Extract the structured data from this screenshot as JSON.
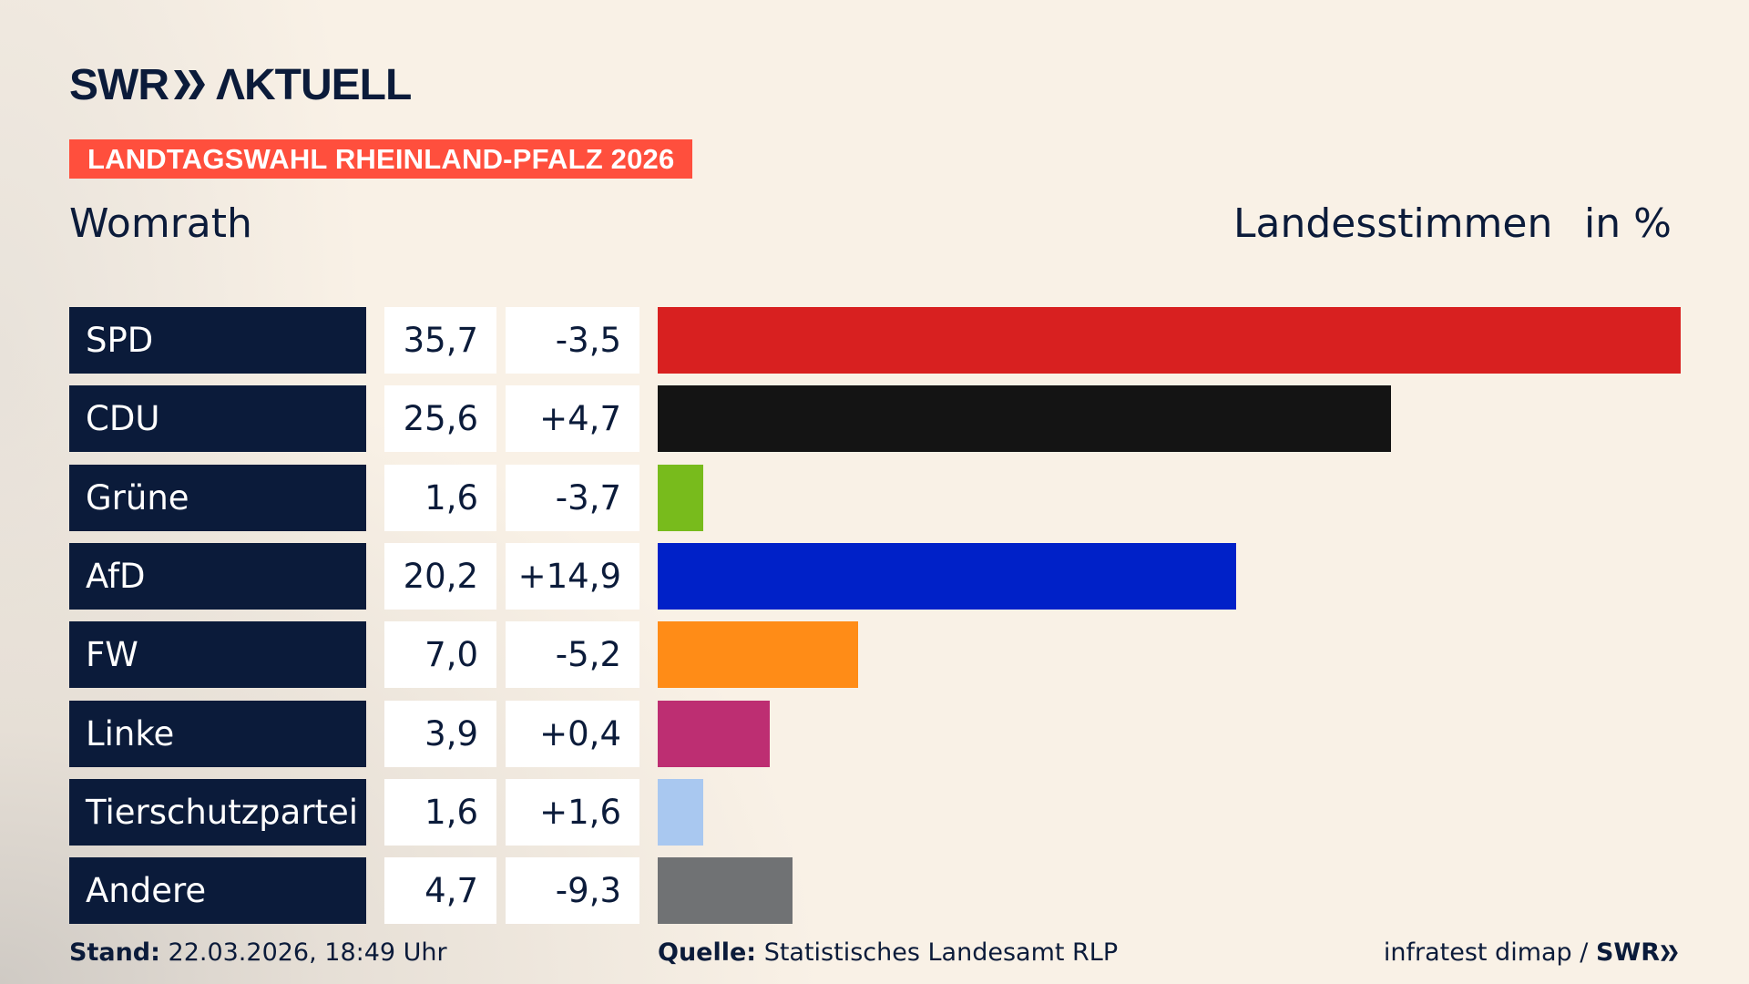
{
  "brand": {
    "logo_text": "SWR AKTUELL"
  },
  "banner": "LANDTAGSWAHL RHEINLAND-PFALZ 2026",
  "place": "Womrath",
  "header": {
    "type": "Landesstimmen",
    "unit": "in %"
  },
  "chart_data": {
    "type": "bar",
    "orientation": "horizontal",
    "categories": [
      "SPD",
      "CDU",
      "Grüne",
      "AfD",
      "FW",
      "Linke",
      "Tierschutzpartei",
      "Andere"
    ],
    "values": [
      35.7,
      25.6,
      1.6,
      20.2,
      7.0,
      3.9,
      1.6,
      4.7
    ],
    "value_labels": [
      "35,7",
      "25,6",
      "1,6",
      "20,2",
      "7,0",
      "3,9",
      "1,6",
      "4,7"
    ],
    "diff_labels": [
      "-3,5",
      "+4,7",
      "-3,7",
      "+14,9",
      "-5,2",
      "+0,4",
      "+1,6",
      "-9,3"
    ],
    "colors": [
      "#d82020",
      "#141414",
      "#78bb1c",
      "#0021c8",
      "#ff8c17",
      "#bd2e72",
      "#a9c8f0",
      "#707274"
    ],
    "xlim": [
      0,
      35.7
    ]
  },
  "footer": {
    "stand_label": "Stand:",
    "stand_value": "22.03.2026, 18:49 Uhr",
    "source_label": "Quelle:",
    "source_value": "Statistisches Landesamt RLP",
    "credit": "infratest dimap /",
    "credit_brand": "SWR"
  }
}
